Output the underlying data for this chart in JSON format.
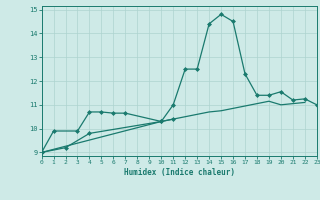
{
  "xlabel": "Humidex (Indice chaleur)",
  "series1": {
    "x": [
      0,
      1,
      3,
      4,
      5,
      6,
      7,
      10,
      11,
      12,
      13,
      14,
      15,
      16,
      17,
      18,
      19,
      20,
      21,
      22,
      23
    ],
    "y": [
      9.0,
      9.9,
      9.9,
      10.7,
      10.7,
      10.65,
      10.65,
      10.3,
      11.0,
      12.5,
      12.5,
      14.4,
      14.8,
      14.5,
      12.3,
      11.4,
      11.4,
      11.55,
      11.2,
      11.25,
      11.0
    ]
  },
  "series2": {
    "x": [
      0,
      2,
      4,
      10,
      11
    ],
    "y": [
      9.0,
      9.2,
      9.8,
      10.3,
      10.4
    ]
  },
  "series3": {
    "x": [
      0,
      10,
      11,
      12,
      13,
      14,
      15,
      16,
      17,
      18,
      19,
      20,
      21,
      22
    ],
    "y": [
      9.0,
      10.3,
      10.4,
      10.5,
      10.6,
      10.7,
      10.75,
      10.85,
      10.95,
      11.05,
      11.15,
      11.0,
      11.05,
      11.1
    ]
  },
  "xlim": [
    0,
    23
  ],
  "ylim": [
    8.85,
    15.15
  ],
  "yticks": [
    9,
    10,
    11,
    12,
    13,
    14,
    15
  ],
  "xticks": [
    0,
    1,
    2,
    3,
    4,
    5,
    6,
    7,
    8,
    9,
    10,
    11,
    12,
    13,
    14,
    15,
    16,
    17,
    18,
    19,
    20,
    21,
    22,
    23
  ],
  "line_color": "#1a7a6e",
  "bg_color": "#ceeae7",
  "grid_color": "#aed4d0",
  "marker": "D",
  "marker_size": 2.0,
  "linewidth": 0.9
}
